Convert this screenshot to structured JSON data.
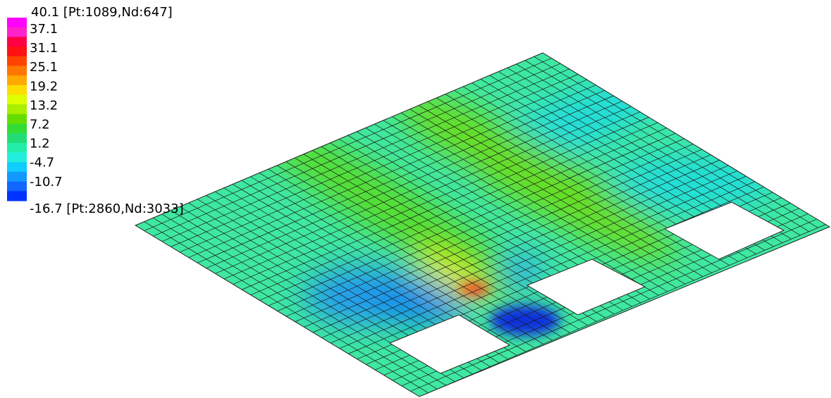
{
  "legend": {
    "max_label": "40.1 [Pt:1089,Nd:647]",
    "levels": [
      "37.1",
      "31.1",
      "25.1",
      "19.2",
      "13.2",
      "7.2",
      "1.2",
      "-4.7",
      "-10.7"
    ],
    "min_label": "-16.7 [Pt:2860,Nd:3033]"
  }
}
